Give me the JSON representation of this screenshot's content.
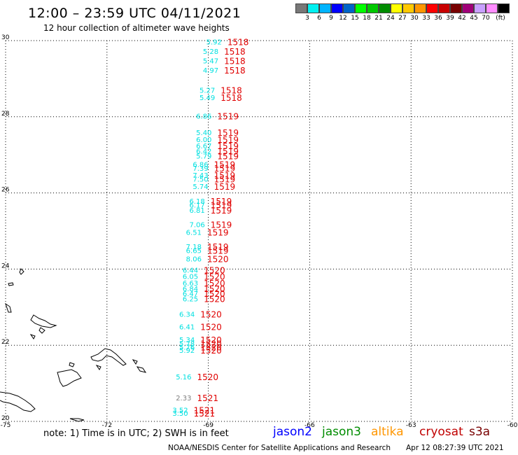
{
  "header": {
    "title": "12:00 – 23:59 UTC 04/11/2021",
    "subtitle": "12 hour collection of altimeter wave heights"
  },
  "colorbar": {
    "colors": [
      "#787878",
      "#00f0f0",
      "#00b4ff",
      "#0000ff",
      "#0064c8",
      "#00ff00",
      "#00c800",
      "#008c00",
      "#ffff00",
      "#ffc800",
      "#ff9600",
      "#ff0000",
      "#c80000",
      "#780000",
      "#a00078",
      "#c8a0ff",
      "#ff8cff",
      "#000000"
    ],
    "labels": [
      "3",
      "6",
      "9",
      "12",
      "15",
      "18",
      "21",
      "24",
      "27",
      "30",
      "33",
      "36",
      "39",
      "42",
      "45",
      "70",
      "(ft)"
    ]
  },
  "axes": {
    "x_ticks": [
      "-75",
      "-72",
      "-69",
      "-66",
      "-63",
      "-60"
    ],
    "y_ticks": [
      "30",
      "28",
      "26",
      "24",
      "22",
      "20"
    ]
  },
  "observations": [
    {
      "lat": 29.9,
      "lon": -68.6,
      "swh": "5.92",
      "time": "1518",
      "color": "#00e0e0"
    },
    {
      "lat": 29.65,
      "lon": -68.7,
      "swh": "5.28",
      "time": "1518",
      "color": "#00e0e0"
    },
    {
      "lat": 29.4,
      "lon": -68.7,
      "swh": "5.47",
      "time": "1518",
      "color": "#00e0e0"
    },
    {
      "lat": 29.15,
      "lon": -68.7,
      "swh": "4.97",
      "time": "1518",
      "color": "#00e0e0"
    },
    {
      "lat": 28.63,
      "lon": -68.8,
      "swh": "5.27",
      "time": "1518",
      "color": "#00e0e0"
    },
    {
      "lat": 28.44,
      "lon": -68.8,
      "swh": "5.49",
      "time": "1518",
      "color": "#00e0e0"
    },
    {
      "lat": 27.95,
      "lon": -68.9,
      "swh": "6.86",
      "time": "1519",
      "color": "#00e0e0"
    },
    {
      "lat": 27.52,
      "lon": -68.9,
      "swh": "5.40",
      "time": "1519",
      "color": "#00e0e0"
    },
    {
      "lat": 27.33,
      "lon": -68.9,
      "swh": "6.00",
      "time": "1519",
      "color": "#00e0e0"
    },
    {
      "lat": 27.17,
      "lon": -68.9,
      "swh": "6.67",
      "time": "1519",
      "color": "#00e0e0"
    },
    {
      "lat": 27.03,
      "lon": -68.9,
      "swh": "6.42",
      "time": "1519",
      "color": "#00e0e0"
    },
    {
      "lat": 26.9,
      "lon": -68.9,
      "swh": "5.79",
      "time": "1519",
      "color": "#00e0e0"
    },
    {
      "lat": 26.68,
      "lon": -69.0,
      "swh": "6.86",
      "time": "1519",
      "color": "#00e0e0"
    },
    {
      "lat": 26.58,
      "lon": -69.0,
      "swh": "7.39",
      "time": "1519",
      "color": "#00e0e0"
    },
    {
      "lat": 26.4,
      "lon": -69.0,
      "swh": "7.43",
      "time": "1519",
      "color": "#00e0e0"
    },
    {
      "lat": 26.3,
      "lon": -69.0,
      "swh": "7.50",
      "time": "1519",
      "color": "#00e0e0"
    },
    {
      "lat": 26.1,
      "lon": -69.0,
      "swh": "5.74",
      "time": "1519",
      "color": "#00e0e0"
    },
    {
      "lat": 25.72,
      "lon": -69.1,
      "swh": "6.18",
      "time": "1519",
      "color": "#00e0e0"
    },
    {
      "lat": 25.62,
      "lon": -69.1,
      "swh": "6.17",
      "time": "1519",
      "color": "#00e0e0"
    },
    {
      "lat": 25.48,
      "lon": -69.1,
      "swh": "6.81",
      "time": "1519",
      "color": "#00e0e0"
    },
    {
      "lat": 25.1,
      "lon": -69.1,
      "swh": "7.06",
      "time": "1519",
      "color": "#00e0e0"
    },
    {
      "lat": 24.9,
      "lon": -69.2,
      "swh": "6.51",
      "time": "1519",
      "color": "#00e0e0"
    },
    {
      "lat": 24.52,
      "lon": -69.2,
      "swh": "7.18",
      "time": "1519",
      "color": "#00e0e0"
    },
    {
      "lat": 24.42,
      "lon": -69.2,
      "swh": "6.65",
      "time": "1519",
      "color": "#00e0e0"
    },
    {
      "lat": 24.2,
      "lon": -69.2,
      "swh": "8.06",
      "time": "1520",
      "color": "#00e0e0"
    },
    {
      "lat": 23.91,
      "lon": -69.3,
      "swh": "6.44",
      "time": "1520",
      "color": "#00e0e0"
    },
    {
      "lat": 23.74,
      "lon": -69.3,
      "swh": "6.05",
      "time": "1520",
      "color": "#00e0e0"
    },
    {
      "lat": 23.57,
      "lon": -69.3,
      "swh": "6.63",
      "time": "1520",
      "color": "#00e0e0"
    },
    {
      "lat": 23.42,
      "lon": -69.3,
      "swh": "6.84",
      "time": "1520",
      "color": "#00e0e0"
    },
    {
      "lat": 23.29,
      "lon": -69.3,
      "swh": "6.47",
      "time": "1520",
      "color": "#00e0e0"
    },
    {
      "lat": 23.15,
      "lon": -69.3,
      "swh": "6.25",
      "time": "1520",
      "color": "#00e0e0"
    },
    {
      "lat": 22.75,
      "lon": -69.4,
      "swh": "6.34",
      "time": "1520",
      "color": "#00e0e0"
    },
    {
      "lat": 22.42,
      "lon": -69.4,
      "swh": "6.41",
      "time": "1520",
      "color": "#00e0e0"
    },
    {
      "lat": 22.08,
      "lon": -69.4,
      "swh": "5.34",
      "time": "1520",
      "color": "#00e0e0"
    },
    {
      "lat": 21.98,
      "lon": -69.4,
      "swh": "5.78",
      "time": "1520",
      "color": "#00e0e0"
    },
    {
      "lat": 21.88,
      "lon": -69.4,
      "swh": "5.76",
      "time": "1520",
      "color": "#00e0e0"
    },
    {
      "lat": 21.8,
      "lon": -69.4,
      "swh": "5.92",
      "time": "1520",
      "color": "#00e0e0"
    },
    {
      "lat": 21.1,
      "lon": -69.5,
      "swh": "5.16",
      "time": "1520",
      "color": "#00e0e0"
    },
    {
      "lat": 20.55,
      "lon": -69.5,
      "swh": "2.33",
      "time": "1521",
      "color": "#808080"
    },
    {
      "lat": 20.23,
      "lon": -69.6,
      "swh": "3.52",
      "time": "1521",
      "color": "#00e0e0"
    },
    {
      "lat": 20.15,
      "lon": -69.6,
      "swh": "3.50",
      "time": "1521",
      "color": "#00e0e0"
    }
  ],
  "footer": {
    "note": "note:  1) Time is in UTC;  2) SWH is in feet",
    "satellites": [
      {
        "name": "jason2",
        "color": "#0000ff"
      },
      {
        "name": "jason3",
        "color": "#008c00"
      },
      {
        "name": "altika",
        "color": "#ff9600"
      },
      {
        "name": "cryosat",
        "color": "#c00000"
      },
      {
        "name": "s3a",
        "color": "#780000"
      }
    ],
    "credit": "NOAA/NESDIS Center for Satellite Applications and Research",
    "generated": "Apr 12 08:27:39 UTC 2021"
  }
}
